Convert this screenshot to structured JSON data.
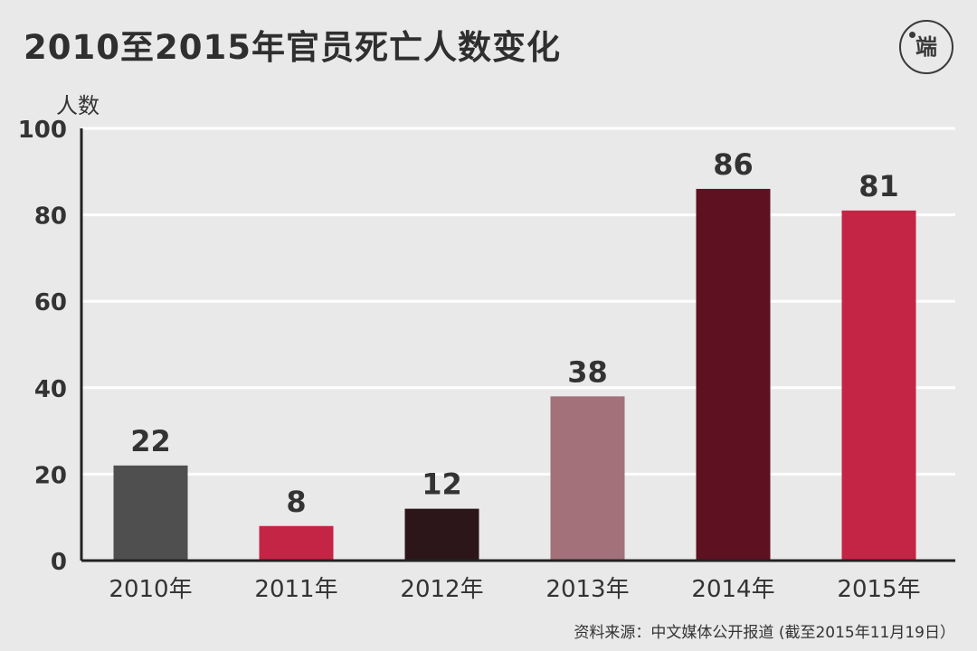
{
  "header": {
    "title": "2010至2015年官员死亡人数变化",
    "logo_text": "端"
  },
  "footer": {
    "source": "资料来源：中文媒体公开报道 (截至2015年11月19日）"
  },
  "colors": {
    "background": "#e9e9e9",
    "gridline": "#ffffff",
    "axis": "#222222",
    "text": "#333333"
  },
  "chart_data": {
    "type": "bar",
    "title": "2010至2015年官员死亡人数变化",
    "xlabel": "",
    "ylabel": "人数",
    "ylim": [
      0,
      100
    ],
    "yticks": [
      0,
      20,
      40,
      60,
      80,
      100
    ],
    "grid": true,
    "legend": "none",
    "categories": [
      "2010年",
      "2011年",
      "2012年",
      "2013年",
      "2014年",
      "2015年"
    ],
    "values": [
      22,
      8,
      12,
      38,
      86,
      81
    ],
    "bar_colors": [
      "#4f4f4f",
      "#c42544",
      "#2c161a",
      "#a2717a",
      "#5e1121",
      "#c42544"
    ]
  }
}
